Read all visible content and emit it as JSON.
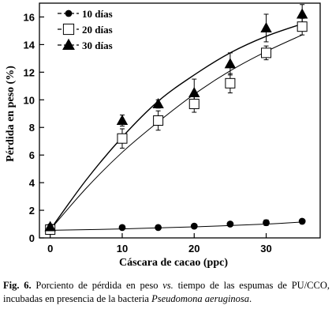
{
  "chart_data": {
    "type": "scatter",
    "xlabel": "Cáscara de cacao (ppc)",
    "ylabel": "Pérdida en peso (%)",
    "xlim": [
      -1.5,
      37.5
    ],
    "ylim": [
      0,
      17
    ],
    "x_ticks": [
      0,
      10,
      20,
      30
    ],
    "y_ticks": [
      0,
      2,
      4,
      6,
      8,
      10,
      12,
      14,
      16
    ],
    "legend_position": "top-left",
    "grid": false,
    "series": [
      {
        "name": "10 días",
        "marker": "filled-circle",
        "x": [
          0,
          10,
          15,
          20,
          25,
          30,
          35
        ],
        "y": [
          0.7,
          0.75,
          0.75,
          0.85,
          1.0,
          1.1,
          1.2
        ],
        "err": [
          0.1,
          0.1,
          0.1,
          0.1,
          0.1,
          0.2,
          0.1
        ],
        "fit": {
          "x": [
            0,
            10,
            20,
            30,
            35
          ],
          "y": [
            0.55,
            0.65,
            0.8,
            1.0,
            1.15
          ]
        }
      },
      {
        "name": "20 días",
        "marker": "open-square",
        "x": [
          0,
          10,
          15,
          20,
          25,
          30,
          35
        ],
        "y": [
          0.6,
          7.2,
          8.5,
          9.7,
          11.2,
          13.4,
          15.3
        ],
        "err": [
          0.3,
          0.7,
          0.7,
          0.6,
          0.7,
          0.5,
          0.6
        ],
        "fit": {
          "x": [
            0,
            5,
            10,
            15,
            20,
            25,
            30,
            35
          ],
          "y": [
            0.6,
            3.6,
            6.2,
            8.4,
            10.4,
            12.1,
            13.5,
            14.7
          ]
        }
      },
      {
        "name": "30 días",
        "marker": "filled-triangle",
        "x": [
          0,
          10,
          15,
          20,
          25,
          30,
          35
        ],
        "y": [
          0.8,
          8.5,
          9.7,
          10.5,
          12.6,
          15.2,
          16.2
        ],
        "err": [
          0.2,
          0.4,
          0.3,
          1.0,
          0.8,
          1.0,
          0.7
        ],
        "fit": {
          "x": [
            0,
            5,
            10,
            15,
            20,
            25,
            30,
            35
          ],
          "y": [
            0.6,
            4.2,
            7.3,
            9.9,
            11.8,
            13.4,
            14.6,
            15.5
          ]
        }
      }
    ]
  },
  "caption": {
    "label": "Fig. 6.",
    "text_1": " Porciento de pérdida en peso ",
    "vs": "vs.",
    "text_2": " tiempo de las espumas de PU/CCO, incubadas en presencia de  la bacteria ",
    "organism": "Pseudomona aeruginosa",
    "end": "."
  }
}
